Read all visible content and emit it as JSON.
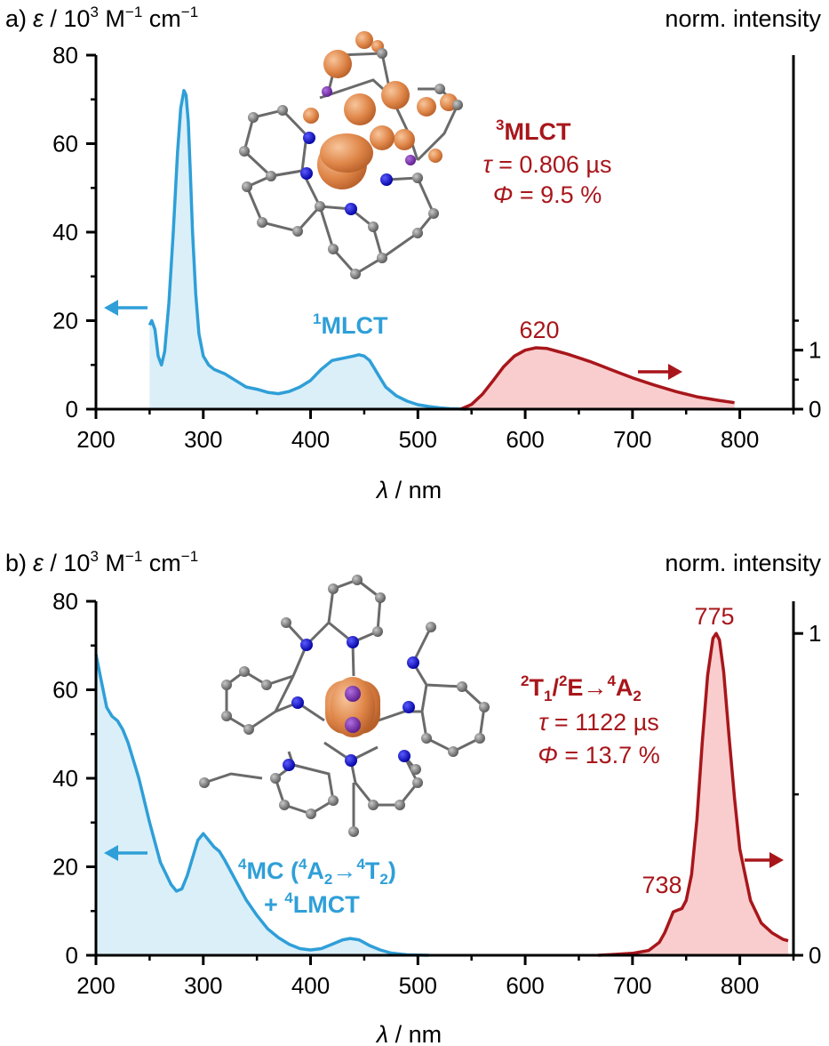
{
  "colors": {
    "absorption": "#2f9fd8",
    "absorption_fill": "#dbeff9",
    "emission": "#a8161b",
    "emission_fill": "#f9cdcd",
    "axis": "#000000"
  },
  "chart_data": [
    {
      "type": "line",
      "panel_label": "a)",
      "xlabel_symbol": "λ",
      "xlabel_unit": " / nm",
      "ylabel_left_symbol": "ε",
      "ylabel_left_unit_a": " / 10",
      "ylabel_left_unit_exp": "3",
      "ylabel_left_unit_b": " M",
      "ylabel_left_unit_exp2": "−1",
      "ylabel_left_unit_c": " cm",
      "ylabel_left_unit_exp3": "−1",
      "ylabel_right": "norm. intensity",
      "xlim": [
        200,
        850
      ],
      "ylim_left": [
        0,
        80
      ],
      "ylim_right": [
        0,
        6
      ],
      "x_ticks": [
        "200",
        "300",
        "400",
        "500",
        "600",
        "700",
        "800"
      ],
      "y_left_ticks": [
        "0",
        "20",
        "40",
        "60",
        "80"
      ],
      "y_right_ticks": [
        "0",
        "1"
      ],
      "series": [
        {
          "axis": "left",
          "x": [
            250,
            252,
            255,
            258,
            261,
            264,
            268,
            272,
            276,
            279,
            282,
            284,
            286,
            288,
            290,
            293,
            296,
            300,
            305,
            310,
            315,
            320,
            330,
            340,
            350,
            360,
            370,
            380,
            390,
            400,
            410,
            420,
            430,
            440,
            445,
            450,
            455,
            460,
            465,
            470,
            480,
            490,
            500,
            510,
            520,
            530,
            545
          ],
          "y": [
            19,
            20,
            18,
            12,
            10,
            13,
            24,
            40,
            58,
            68,
            72,
            71,
            65,
            53,
            40,
            26,
            17,
            12,
            10,
            9,
            8.5,
            8,
            6.5,
            5,
            4.5,
            3.8,
            3.5,
            4,
            5,
            6.5,
            9,
            11,
            11.5,
            12,
            12.3,
            12,
            11,
            9,
            7,
            5,
            3,
            1.8,
            1,
            0.6,
            0.3,
            0.1,
            0
          ]
        },
        {
          "axis": "right",
          "x": [
            540,
            550,
            560,
            570,
            580,
            590,
            600,
            610,
            620,
            630,
            640,
            650,
            660,
            670,
            680,
            690,
            700,
            720,
            740,
            760,
            780,
            795
          ],
          "y": [
            0,
            0.08,
            0.25,
            0.48,
            0.72,
            0.9,
            1.0,
            1.04,
            1.03,
            0.98,
            0.93,
            0.87,
            0.81,
            0.74,
            0.67,
            0.6,
            0.53,
            0.41,
            0.3,
            0.21,
            0.15,
            0.11
          ]
        }
      ],
      "annotations": {
        "mlct1_sup": "1",
        "mlct1_text": "MLCT",
        "peak_label": "620",
        "mlct3_sup": "3",
        "mlct3_text": "MLCT",
        "tau_symbol": "τ",
        "tau_value": " = 0.806 µs",
        "phi_symbol": "Φ",
        "phi_value": " = 9.5 %"
      }
    },
    {
      "type": "line",
      "panel_label": "b)",
      "xlabel_symbol": "λ",
      "xlabel_unit": " / nm",
      "ylabel_left_symbol": "ε",
      "ylabel_left_unit_a": " / 10",
      "ylabel_left_unit_exp": "3",
      "ylabel_left_unit_b": " M",
      "ylabel_left_unit_exp2": "−1",
      "ylabel_left_unit_c": " cm",
      "ylabel_left_unit_exp3": "−1",
      "ylabel_right": "norm. intensity",
      "xlim": [
        200,
        850
      ],
      "ylim_left": [
        0,
        80
      ],
      "ylim_right": [
        0,
        1.1
      ],
      "x_ticks": [
        "200",
        "300",
        "400",
        "500",
        "600",
        "700",
        "800"
      ],
      "y_left_ticks": [
        "0",
        "20",
        "40",
        "60",
        "80"
      ],
      "y_right_ticks": [
        "0",
        "1"
      ],
      "series": [
        {
          "axis": "left",
          "x": [
            200,
            205,
            210,
            215,
            220,
            225,
            230,
            240,
            250,
            260,
            270,
            275,
            280,
            285,
            290,
            295,
            300,
            305,
            310,
            315,
            320,
            330,
            340,
            350,
            360,
            370,
            380,
            390,
            400,
            410,
            420,
            430,
            437,
            445,
            455,
            465,
            475,
            490,
            510
          ],
          "y": [
            68,
            62,
            56,
            54,
            53,
            51,
            48,
            40,
            30,
            21,
            16,
            14.5,
            15,
            18,
            22,
            26,
            27.5,
            26,
            24.5,
            23.5,
            21.5,
            17,
            12.5,
            9,
            6,
            4,
            2.5,
            1.5,
            1.2,
            1.5,
            2.5,
            3.5,
            3.8,
            3.5,
            2.2,
            1.2,
            0.5,
            0.1,
            0
          ]
        },
        {
          "axis": "right",
          "x": [
            668,
            680,
            700,
            715,
            725,
            730,
            735,
            738,
            742,
            746,
            750,
            755,
            760,
            765,
            770,
            775,
            778,
            781,
            785,
            790,
            795,
            800,
            810,
            820,
            830,
            840,
            845
          ],
          "y": [
            0,
            0.002,
            0.006,
            0.015,
            0.04,
            0.07,
            0.11,
            0.135,
            0.14,
            0.145,
            0.17,
            0.25,
            0.42,
            0.66,
            0.87,
            0.985,
            1.0,
            0.98,
            0.88,
            0.68,
            0.49,
            0.33,
            0.17,
            0.1,
            0.07,
            0.05,
            0.045
          ]
        }
      ],
      "annotations": {
        "mc_l1": "MC (",
        "mc_sup1": "4",
        "mc_sup2": "4",
        "mc_a": "A",
        "mc_a_sub": "2",
        "mc_arrow": "→",
        "mc_sup3": "4",
        "mc_t": "T",
        "mc_t_sub": "2",
        "mc_close": ")",
        "lmct_plus": "+ ",
        "lmct_sup": "4",
        "lmct_text": "LMCT",
        "peak_main": "775",
        "peak_shoulder": "738",
        "term_sup1": "2",
        "term_t": "T",
        "term_t_sub": "1",
        "term_slash": "/",
        "term_sup2": "2",
        "term_e": "E→",
        "term_sup3": "4",
        "term_a": "A",
        "term_a_sub": "2",
        "tau_symbol": "τ",
        "tau_value": " = 1122 µs",
        "phi_symbol": "Φ",
        "phi_value": " = 13.7 %"
      }
    }
  ]
}
